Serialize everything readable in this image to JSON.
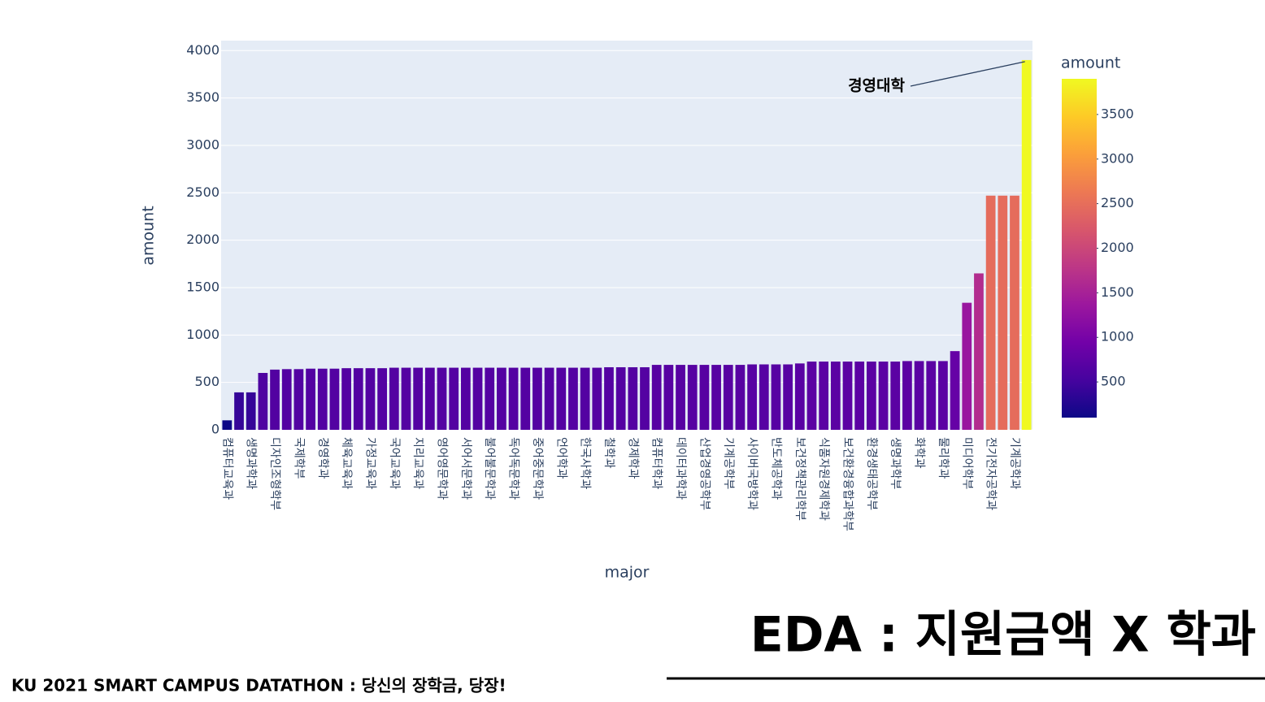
{
  "page": {
    "title": "EDA : 지원금액 X 학과",
    "footer": "KU 2021 SMART CAMPUS DATATHON : 당신의 장학금, 당장!"
  },
  "chart_data": {
    "type": "bar",
    "x_label": "major",
    "y_label": "amount",
    "categories": [
      "컴퓨터교육과",
      null,
      "생명과학과",
      null,
      "디자인조형학부",
      null,
      "국제학부",
      null,
      "경영학과",
      null,
      "체육교육과",
      null,
      "가정교육과",
      null,
      "국어교육과",
      null,
      "지리교육과",
      null,
      "영어영문학과",
      null,
      "서어서문학과",
      null,
      "불어불문학과",
      null,
      "독어독문학과",
      null,
      "중어중문학과",
      null,
      "언어학과",
      null,
      "한국사학과",
      null,
      "철학과",
      null,
      "경제학과",
      null,
      "컴퓨터학과",
      null,
      "데이터과학과",
      null,
      "산업경영공학부",
      null,
      "기계공학부",
      null,
      "사이버국방학과",
      null,
      "반도체공학과",
      null,
      "보건정책관리학부",
      null,
      "식품자원경제학과",
      null,
      "보건환경융합과학부",
      null,
      "환경생태공학부",
      null,
      "생명과학부",
      null,
      "화학과",
      null,
      "물리학과",
      null,
      "미디어학부",
      null,
      "전기전자공학과",
      null,
      "기계공학과",
      null
    ],
    "values": [
      100,
      395,
      395,
      600,
      635,
      640,
      640,
      645,
      645,
      645,
      650,
      650,
      650,
      650,
      655,
      655,
      655,
      655,
      655,
      655,
      655,
      655,
      655,
      655,
      655,
      655,
      655,
      655,
      655,
      655,
      655,
      655,
      660,
      660,
      660,
      660,
      685,
      685,
      685,
      685,
      685,
      685,
      685,
      685,
      690,
      690,
      690,
      690,
      700,
      720,
      720,
      720,
      720,
      720,
      720,
      720,
      720,
      725,
      725,
      725,
      725,
      830,
      1340,
      1650,
      2470,
      2470,
      2470,
      3900
    ],
    "ylim": [
      0,
      4105
    ],
    "yticks": [
      0,
      500,
      1000,
      1500,
      2000,
      2500,
      3000,
      3500,
      4000
    ],
    "grid": true,
    "colorscale": [
      "#0d0887",
      "#46039f",
      "#7201a8",
      "#9c179e",
      "#bd3786",
      "#d8576b",
      "#ed7953",
      "#fb9f3a",
      "#fdca26",
      "#f0f921"
    ],
    "colorbar": {
      "title": "amount",
      "ticks": [
        500,
        1000,
        1500,
        2000,
        2500,
        3000,
        3500
      ]
    },
    "annotation": "경영대학"
  }
}
